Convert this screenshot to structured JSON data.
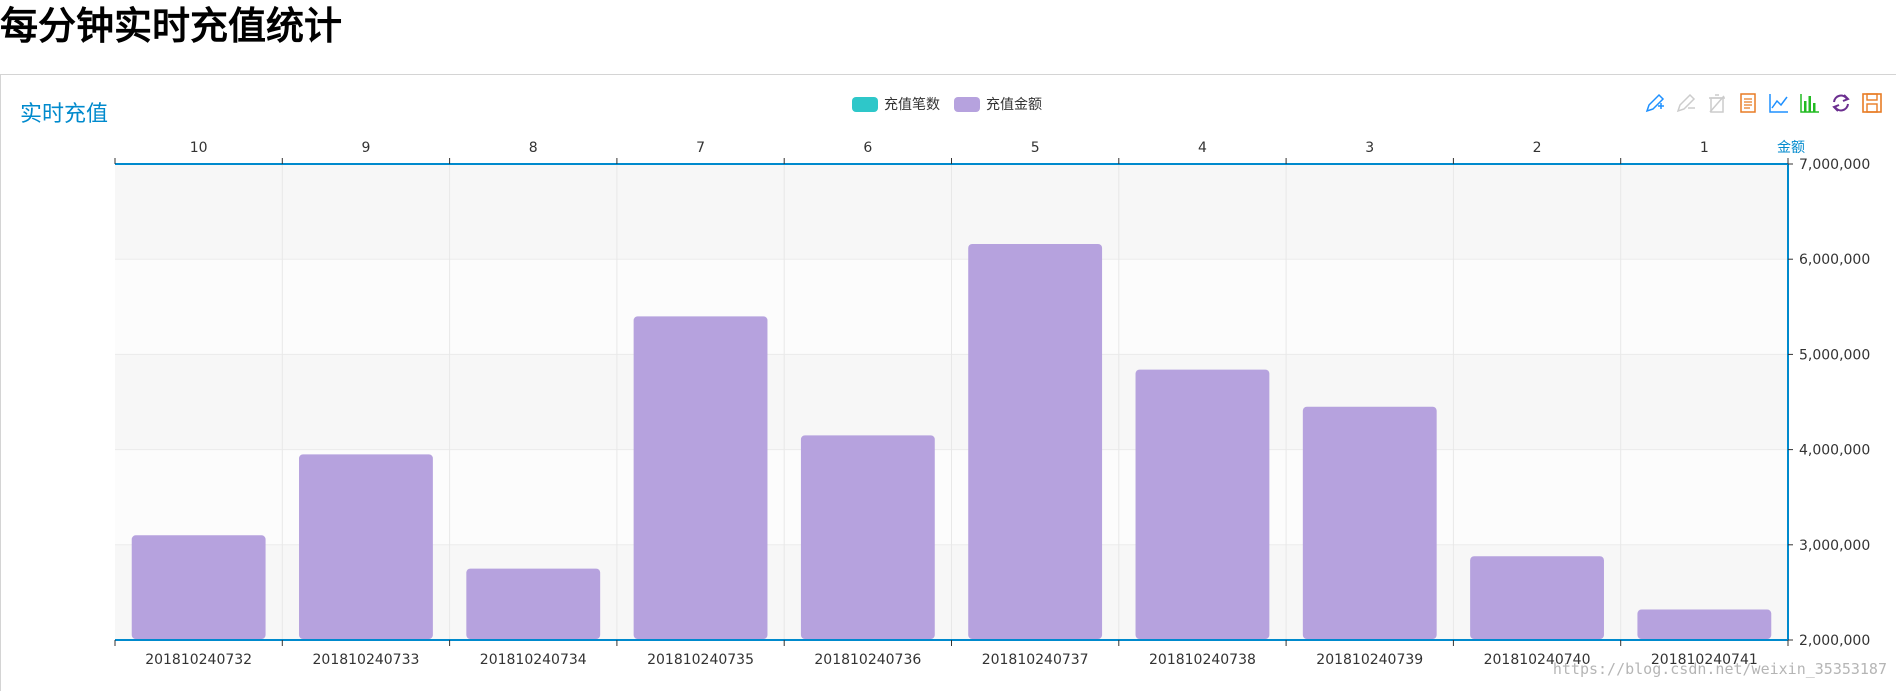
{
  "page": {
    "heading": "每分钟实时充值统计"
  },
  "chart_title": "实时充值",
  "legend": {
    "items": [
      {
        "label": "充值笔数",
        "color": "#2ec7c9"
      },
      {
        "label": "充值金额",
        "color": "#b6a2de"
      }
    ]
  },
  "toolbox": {
    "icons": [
      "mark-icon",
      "mark-undo-icon",
      "mark-clear-icon",
      "data-view-icon",
      "line-chart-icon",
      "bar-chart-icon",
      "restore-icon",
      "save-image-icon"
    ]
  },
  "watermark": "https://blog.csdn.net/weixin_35353187",
  "chart_data": {
    "type": "bar",
    "categories": [
      "201810240732",
      "201810240733",
      "201810240734",
      "201810240735",
      "201810240736",
      "201810240737",
      "201810240738",
      "201810240739",
      "201810240740",
      "201810240741"
    ],
    "top_axis_labels": [
      "10",
      "9",
      "8",
      "7",
      "6",
      "5",
      "4",
      "3",
      "2",
      "1"
    ],
    "series": [
      {
        "name": "充值金额",
        "values": [
          3100000,
          3950000,
          2750000,
          5400000,
          4150000,
          6160000,
          4840000,
          4450000,
          2880000,
          2320000
        ],
        "color": "#b6a2de"
      }
    ],
    "ylabel": "金额",
    "yticks": [
      "7,000,000",
      "6,000,000",
      "5,000,000",
      "4,000,000",
      "3,000,000",
      "2,000,000"
    ],
    "ylim": [
      2000000,
      7000000
    ],
    "axis_color": "#008acd",
    "grid": true
  }
}
